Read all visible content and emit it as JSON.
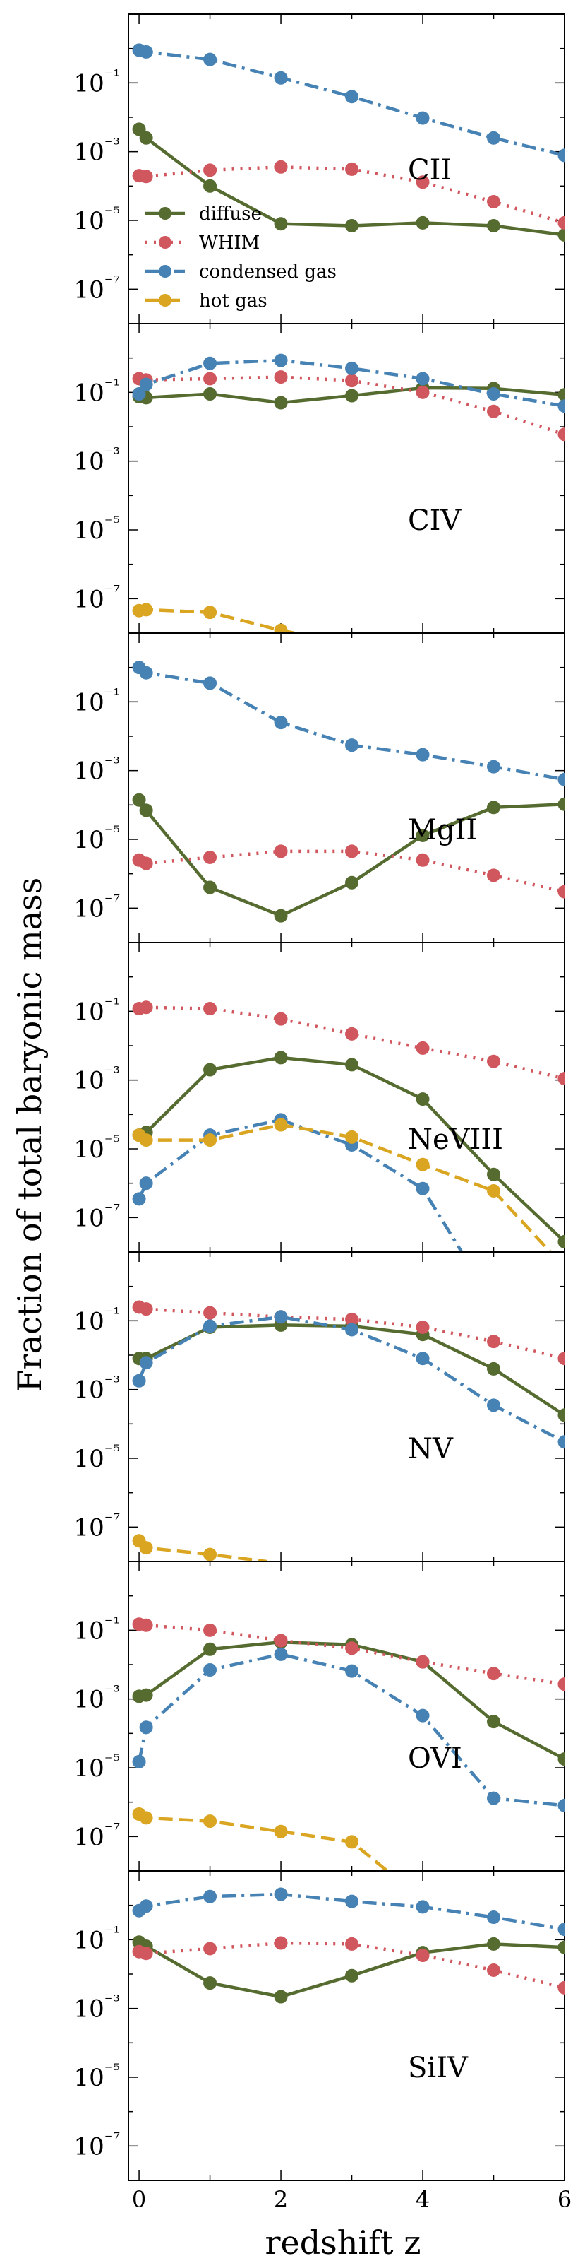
{
  "figure": {
    "ylabel": "Fraction of total baryonic mass",
    "xlabel": "redshift z"
  },
  "legend": {
    "placement": "upper-left of first panel",
    "entries": [
      {
        "label": "diffuse",
        "color": "#556b2f",
        "linestyle": "solid"
      },
      {
        "label": "WHIM",
        "color": "#d1575e",
        "linestyle": "dotted"
      },
      {
        "label": "condensed gas",
        "color": "#4682b4",
        "linestyle": "dashdot"
      },
      {
        "label": "hot gas",
        "color": "#daa520",
        "linestyle": "dashed"
      }
    ]
  },
  "axes": {
    "x_ticks": [
      0,
      2,
      4,
      6
    ],
    "x_tick_labels": [
      "0",
      "2",
      "4",
      "6"
    ],
    "y_tick_labels": [
      "10⁻¹",
      "10⁻³",
      "10⁻⁵",
      "10⁻⁷"
    ],
    "y_tick_exponents": [
      -1,
      -3,
      -5,
      -7
    ]
  },
  "chart_data": [
    {
      "type": "line",
      "panel_label": "CII",
      "xlim": [
        -0.15,
        6
      ],
      "ylim": [
        1e-08,
        10
      ],
      "yscale": "log",
      "series": [
        {
          "name": "diffuse",
          "x": [
            0,
            0.1,
            1,
            2,
            3,
            4,
            5,
            6
          ],
          "y": [
            0.0045,
            0.0025,
            0.0001,
            8e-06,
            7e-06,
            8.5e-06,
            7e-06,
            3.8e-06
          ]
        },
        {
          "name": "WHIM",
          "x": [
            0,
            0.1,
            1,
            2,
            3,
            4,
            5,
            6
          ],
          "y": [
            0.0002,
            0.00019,
            0.00029,
            0.00036,
            0.00031,
            0.00013,
            3.5e-05,
            8.5e-06
          ]
        },
        {
          "name": "condensed gas",
          "x": [
            0,
            0.1,
            1,
            2,
            3,
            4,
            5,
            6
          ],
          "y": [
            0.9,
            0.8,
            0.48,
            0.14,
            0.04,
            0.0095,
            0.0025,
            0.00078
          ]
        },
        {
          "name": "hot gas",
          "x": [],
          "y": []
        }
      ]
    },
    {
      "type": "line",
      "panel_label": "CIV",
      "xlim": [
        -0.15,
        6
      ],
      "ylim": [
        1e-08,
        10
      ],
      "yscale": "log",
      "series": [
        {
          "name": "diffuse",
          "x": [
            0,
            0.1,
            1,
            2,
            3,
            4,
            5,
            6
          ],
          "y": [
            0.075,
            0.07,
            0.09,
            0.05,
            0.08,
            0.135,
            0.13,
            0.085
          ]
        },
        {
          "name": "WHIM",
          "x": [
            0,
            0.1,
            1,
            2,
            3,
            4,
            5,
            6
          ],
          "y": [
            0.25,
            0.23,
            0.25,
            0.28,
            0.22,
            0.1,
            0.028,
            0.006
          ]
        },
        {
          "name": "condensed gas",
          "x": [
            0,
            0.1,
            1,
            2,
            3,
            4,
            5,
            6
          ],
          "y": [
            0.09,
            0.17,
            0.7,
            0.85,
            0.5,
            0.25,
            0.09,
            0.04
          ]
        },
        {
          "name": "hot gas",
          "x": [
            0,
            0.1,
            1,
            2,
            2.2
          ],
          "y": [
            4.5e-08,
            4.8e-08,
            4e-08,
            1.2e-08,
            1e-08
          ]
        }
      ]
    },
    {
      "type": "line",
      "panel_label": "MgII",
      "xlim": [
        -0.15,
        6
      ],
      "ylim": [
        1e-08,
        10
      ],
      "yscale": "log",
      "series": [
        {
          "name": "diffuse",
          "x": [
            0,
            0.1,
            1,
            2,
            3,
            4,
            5,
            6
          ],
          "y": [
            0.00014,
            7e-05,
            4e-07,
            6e-08,
            5.5e-07,
            1.3e-05,
            8.5e-05,
            0.000105
          ]
        },
        {
          "name": "WHIM",
          "x": [
            0,
            0.1,
            1,
            2,
            3,
            4,
            5,
            6
          ],
          "y": [
            2.5e-06,
            2e-06,
            3e-06,
            4.5e-06,
            4.5e-06,
            2.5e-06,
            9e-07,
            3e-07
          ]
        },
        {
          "name": "condensed gas",
          "x": [
            0,
            0.1,
            1,
            2,
            3,
            4,
            5,
            6
          ],
          "y": [
            1,
            0.7,
            0.35,
            0.025,
            0.0055,
            0.0029,
            0.0013,
            0.00055
          ]
        },
        {
          "name": "hot gas",
          "x": [],
          "y": []
        }
      ]
    },
    {
      "type": "line",
      "panel_label": "NeVIII",
      "xlim": [
        -0.15,
        6
      ],
      "ylim": [
        1e-08,
        10
      ],
      "yscale": "log",
      "series": [
        {
          "name": "diffuse",
          "x": [
            0,
            0.1,
            1,
            2,
            3,
            4,
            5,
            6
          ],
          "y": [
            2.5e-05,
            3e-05,
            0.002,
            0.0045,
            0.0028,
            0.00028,
            1.8e-06,
            2e-08
          ]
        },
        {
          "name": "WHIM",
          "x": [
            0,
            0.1,
            1,
            2,
            3,
            4,
            5,
            6
          ],
          "y": [
            0.12,
            0.13,
            0.12,
            0.06,
            0.022,
            0.0085,
            0.0035,
            0.0011
          ]
        },
        {
          "name": "condensed gas",
          "x": [
            0,
            0.1,
            1,
            2,
            3,
            4,
            4.55
          ],
          "y": [
            3.5e-07,
            1e-06,
            2.5e-05,
            7e-05,
            1.3e-05,
            7e-07,
            1e-08
          ]
        },
        {
          "name": "hot gas",
          "x": [
            0,
            0.1,
            1,
            2,
            3,
            4,
            5,
            5.8
          ],
          "y": [
            2.5e-05,
            1.8e-05,
            1.8e-05,
            5e-05,
            2.2e-05,
            3.5e-06,
            6e-07,
            1e-08
          ]
        }
      ]
    },
    {
      "type": "line",
      "panel_label": "NV",
      "xlim": [
        -0.15,
        6
      ],
      "ylim": [
        1e-08,
        10
      ],
      "yscale": "log",
      "series": [
        {
          "name": "diffuse",
          "x": [
            0,
            0.1,
            1,
            2,
            3,
            4,
            5,
            6
          ],
          "y": [
            0.008,
            0.008,
            0.065,
            0.075,
            0.07,
            0.04,
            0.004,
            0.00018
          ]
        },
        {
          "name": "WHIM",
          "x": [
            0,
            0.1,
            1,
            2,
            3,
            4,
            5,
            6
          ],
          "y": [
            0.25,
            0.22,
            0.17,
            0.13,
            0.11,
            0.065,
            0.025,
            0.008
          ]
        },
        {
          "name": "condensed gas",
          "x": [
            0,
            0.1,
            1,
            2,
            3,
            4,
            5,
            6
          ],
          "y": [
            0.0018,
            0.006,
            0.07,
            0.13,
            0.055,
            0.008,
            0.00035,
            3e-05
          ]
        },
        {
          "name": "hot gas",
          "x": [
            0,
            0.1,
            1,
            1.8
          ],
          "y": [
            4e-08,
            2.5e-08,
            1.6e-08,
            1e-08
          ]
        }
      ]
    },
    {
      "type": "line",
      "panel_label": "OVI",
      "xlim": [
        -0.15,
        6
      ],
      "ylim": [
        1e-08,
        10
      ],
      "yscale": "log",
      "series": [
        {
          "name": "diffuse",
          "x": [
            0,
            0.1,
            1,
            2,
            3,
            4,
            5,
            6
          ],
          "y": [
            0.0012,
            0.0013,
            0.028,
            0.045,
            0.038,
            0.012,
            0.00022,
            1.8e-05
          ]
        },
        {
          "name": "WHIM",
          "x": [
            0,
            0.1,
            1,
            2,
            3,
            4,
            5,
            6
          ],
          "y": [
            0.15,
            0.14,
            0.1,
            0.05,
            0.03,
            0.012,
            0.0055,
            0.0027
          ]
        },
        {
          "name": "condensed gas",
          "x": [
            0,
            0.1,
            1,
            2,
            3,
            4,
            5,
            6
          ],
          "y": [
            1.5e-05,
            0.00015,
            0.007,
            0.02,
            0.0065,
            0.00033,
            1.3e-06,
            8e-07
          ]
        },
        {
          "name": "hot gas",
          "x": [
            0,
            0.1,
            1,
            2,
            3,
            3.5
          ],
          "y": [
            4.5e-07,
            3.5e-07,
            2.8e-07,
            1.4e-07,
            7e-08,
            1e-08
          ]
        }
      ]
    },
    {
      "type": "line",
      "panel_label": "SiIV",
      "xlim": [
        -0.15,
        6
      ],
      "ylim": [
        1e-08,
        10
      ],
      "yscale": "log",
      "series": [
        {
          "name": "diffuse",
          "x": [
            0,
            0.1,
            1,
            2,
            3,
            4,
            5,
            6
          ],
          "y": [
            0.085,
            0.065,
            0.0055,
            0.0022,
            0.009,
            0.042,
            0.075,
            0.06
          ]
        },
        {
          "name": "WHIM",
          "x": [
            0,
            0.1,
            1,
            2,
            3,
            4,
            5,
            6
          ],
          "y": [
            0.045,
            0.04,
            0.055,
            0.08,
            0.075,
            0.035,
            0.013,
            0.004
          ]
        },
        {
          "name": "condensed gas",
          "x": [
            0,
            0.1,
            1,
            2,
            3,
            4,
            5,
            6
          ],
          "y": [
            0.7,
            0.95,
            1.8,
            2.1,
            1.3,
            0.9,
            0.45,
            0.2
          ]
        },
        {
          "name": "hot gas",
          "x": [],
          "y": []
        }
      ]
    }
  ]
}
